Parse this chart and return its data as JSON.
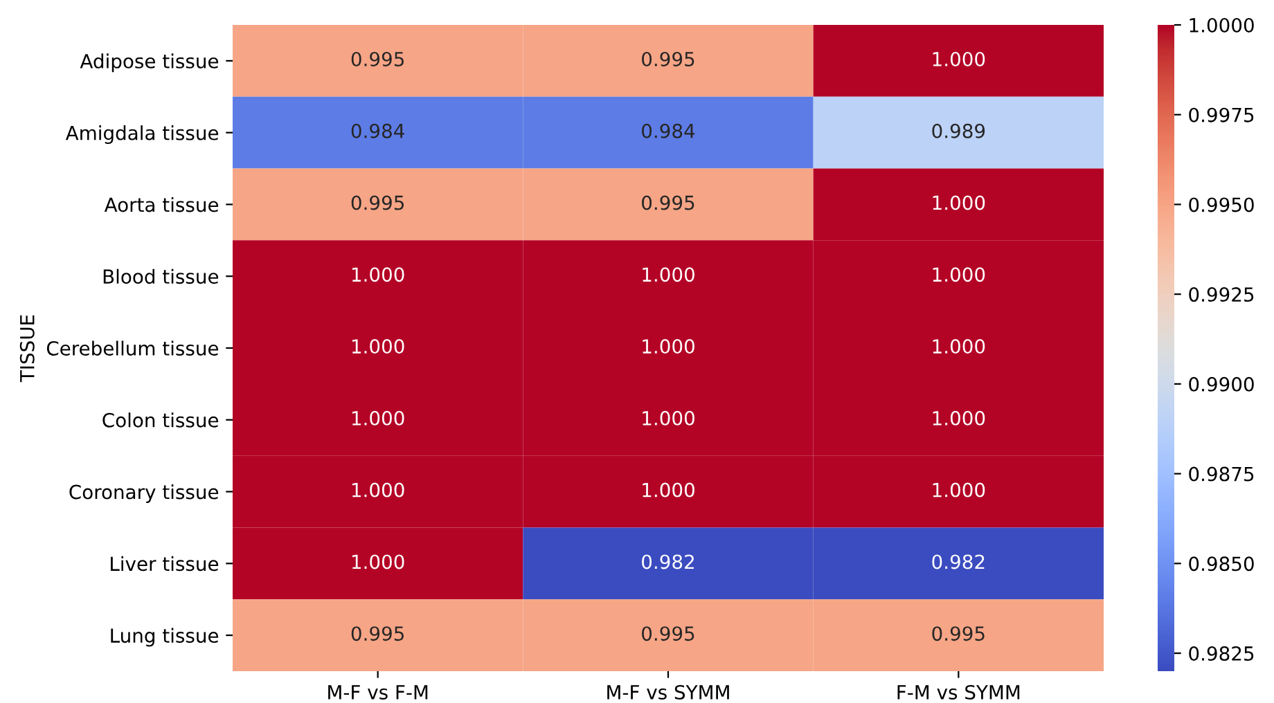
{
  "chart_data": {
    "type": "heatmap",
    "ylabel": "TISSUE",
    "categories": [
      "M-F vs F-M",
      "M-F vs SYMM",
      "F-M vs SYMM"
    ],
    "y_categories": [
      "Adipose tissue",
      "Amigdala tissue",
      "Aorta tissue",
      "Blood tissue",
      "Cerebellum tissue",
      "Colon tissue",
      "Coronary tissue",
      "Liver tissue",
      "Lung tissue"
    ],
    "cells": [
      [
        0.995,
        0.995,
        1.0
      ],
      [
        0.984,
        0.984,
        0.989
      ],
      [
        0.995,
        0.995,
        1.0
      ],
      [
        1.0,
        1.0,
        1.0
      ],
      [
        1.0,
        1.0,
        1.0
      ],
      [
        1.0,
        1.0,
        1.0
      ],
      [
        1.0,
        1.0,
        1.0
      ],
      [
        1.0,
        0.982,
        0.982
      ],
      [
        0.995,
        0.995,
        0.995
      ]
    ],
    "cell_labels": [
      [
        "0.995",
        "0.995",
        "1.000"
      ],
      [
        "0.984",
        "0.984",
        "0.989"
      ],
      [
        "0.995",
        "0.995",
        "1.000"
      ],
      [
        "1.000",
        "1.000",
        "1.000"
      ],
      [
        "1.000",
        "1.000",
        "1.000"
      ],
      [
        "1.000",
        "1.000",
        "1.000"
      ],
      [
        "1.000",
        "1.000",
        "1.000"
      ],
      [
        "1.000",
        "0.982",
        "0.982"
      ],
      [
        "0.995",
        "0.995",
        "0.995"
      ]
    ],
    "clim": [
      0.982,
      1.0
    ],
    "cticks": [
      {
        "value": 0.9825,
        "label": "0.9825"
      },
      {
        "value": 0.985,
        "label": "0.9850"
      },
      {
        "value": 0.9875,
        "label": "0.9875"
      },
      {
        "value": 0.99,
        "label": "0.9900"
      },
      {
        "value": 0.9925,
        "label": "0.9925"
      },
      {
        "value": 0.995,
        "label": "0.9950"
      },
      {
        "value": 0.9975,
        "label": "0.9975"
      },
      {
        "value": 1.0,
        "label": "1.0000"
      }
    ]
  }
}
